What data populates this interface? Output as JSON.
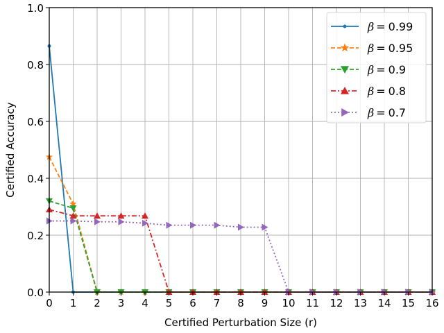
{
  "chart_data": {
    "type": "line",
    "title": "",
    "xlabel": "Certified Perturbation Size (r)",
    "ylabel": "Certified Accuracy",
    "xlim": [
      0,
      16
    ],
    "ylim": [
      0.0,
      1.0
    ],
    "x": [
      0,
      1,
      2,
      3,
      4,
      5,
      6,
      7,
      8,
      9,
      10,
      11,
      12,
      13,
      14,
      15,
      16
    ],
    "x_ticks": [
      "0",
      "1",
      "2",
      "3",
      "4",
      "5",
      "6",
      "7",
      "8",
      "9",
      "10",
      "11",
      "12",
      "13",
      "14",
      "15",
      "16"
    ],
    "y_ticks": [
      "0.0",
      "0.2",
      "0.4",
      "0.6",
      "0.8",
      "1.0"
    ],
    "grid": true,
    "legend_position": "upper right",
    "series": [
      {
        "name": "β = 0.99",
        "legend_value": "0.99",
        "color": "#1f77b4",
        "linestyle": "solid",
        "marker": "point",
        "values": [
          0.865,
          0,
          0,
          0,
          0,
          0,
          0,
          0,
          0,
          0,
          0,
          0,
          0,
          0,
          0,
          0,
          0
        ]
      },
      {
        "name": "β = 0.95",
        "legend_value": "0.95",
        "color": "#ff7f0e",
        "linestyle": "dashed",
        "marker": "star",
        "values": [
          0.475,
          0.31,
          0,
          0,
          0,
          0,
          0,
          0,
          0,
          0,
          0,
          0,
          0,
          0,
          0,
          0,
          0
        ]
      },
      {
        "name": "β = 0.9",
        "legend_value": "0.9",
        "color": "#2ca02c",
        "linestyle": "dashed",
        "marker": "triangle-down",
        "values": [
          0.32,
          0.295,
          0,
          0,
          0,
          0,
          0,
          0,
          0,
          0,
          0,
          0,
          0,
          0,
          0,
          0,
          0
        ]
      },
      {
        "name": "β = 0.8",
        "legend_value": "0.8",
        "color": "#d62728",
        "linestyle": "dashdot",
        "marker": "triangle-up",
        "values": [
          0.29,
          0.268,
          0.268,
          0.268,
          0.268,
          0,
          0,
          0,
          0,
          0,
          0,
          0,
          0,
          0,
          0,
          0,
          0
        ]
      },
      {
        "name": "β = 0.7",
        "legend_value": "0.7",
        "color": "#9467bd",
        "linestyle": "dotted",
        "marker": "triangle-right",
        "values": [
          0.25,
          0.25,
          0.247,
          0.247,
          0.242,
          0.235,
          0.235,
          0.235,
          0.228,
          0.228,
          0,
          0,
          0,
          0,
          0,
          0,
          0
        ]
      }
    ]
  },
  "legend": {
    "beta_symbol": "β",
    "equals": "=",
    "entries": [
      "0.99",
      "0.95",
      "0.9",
      "0.8",
      "0.7"
    ]
  }
}
